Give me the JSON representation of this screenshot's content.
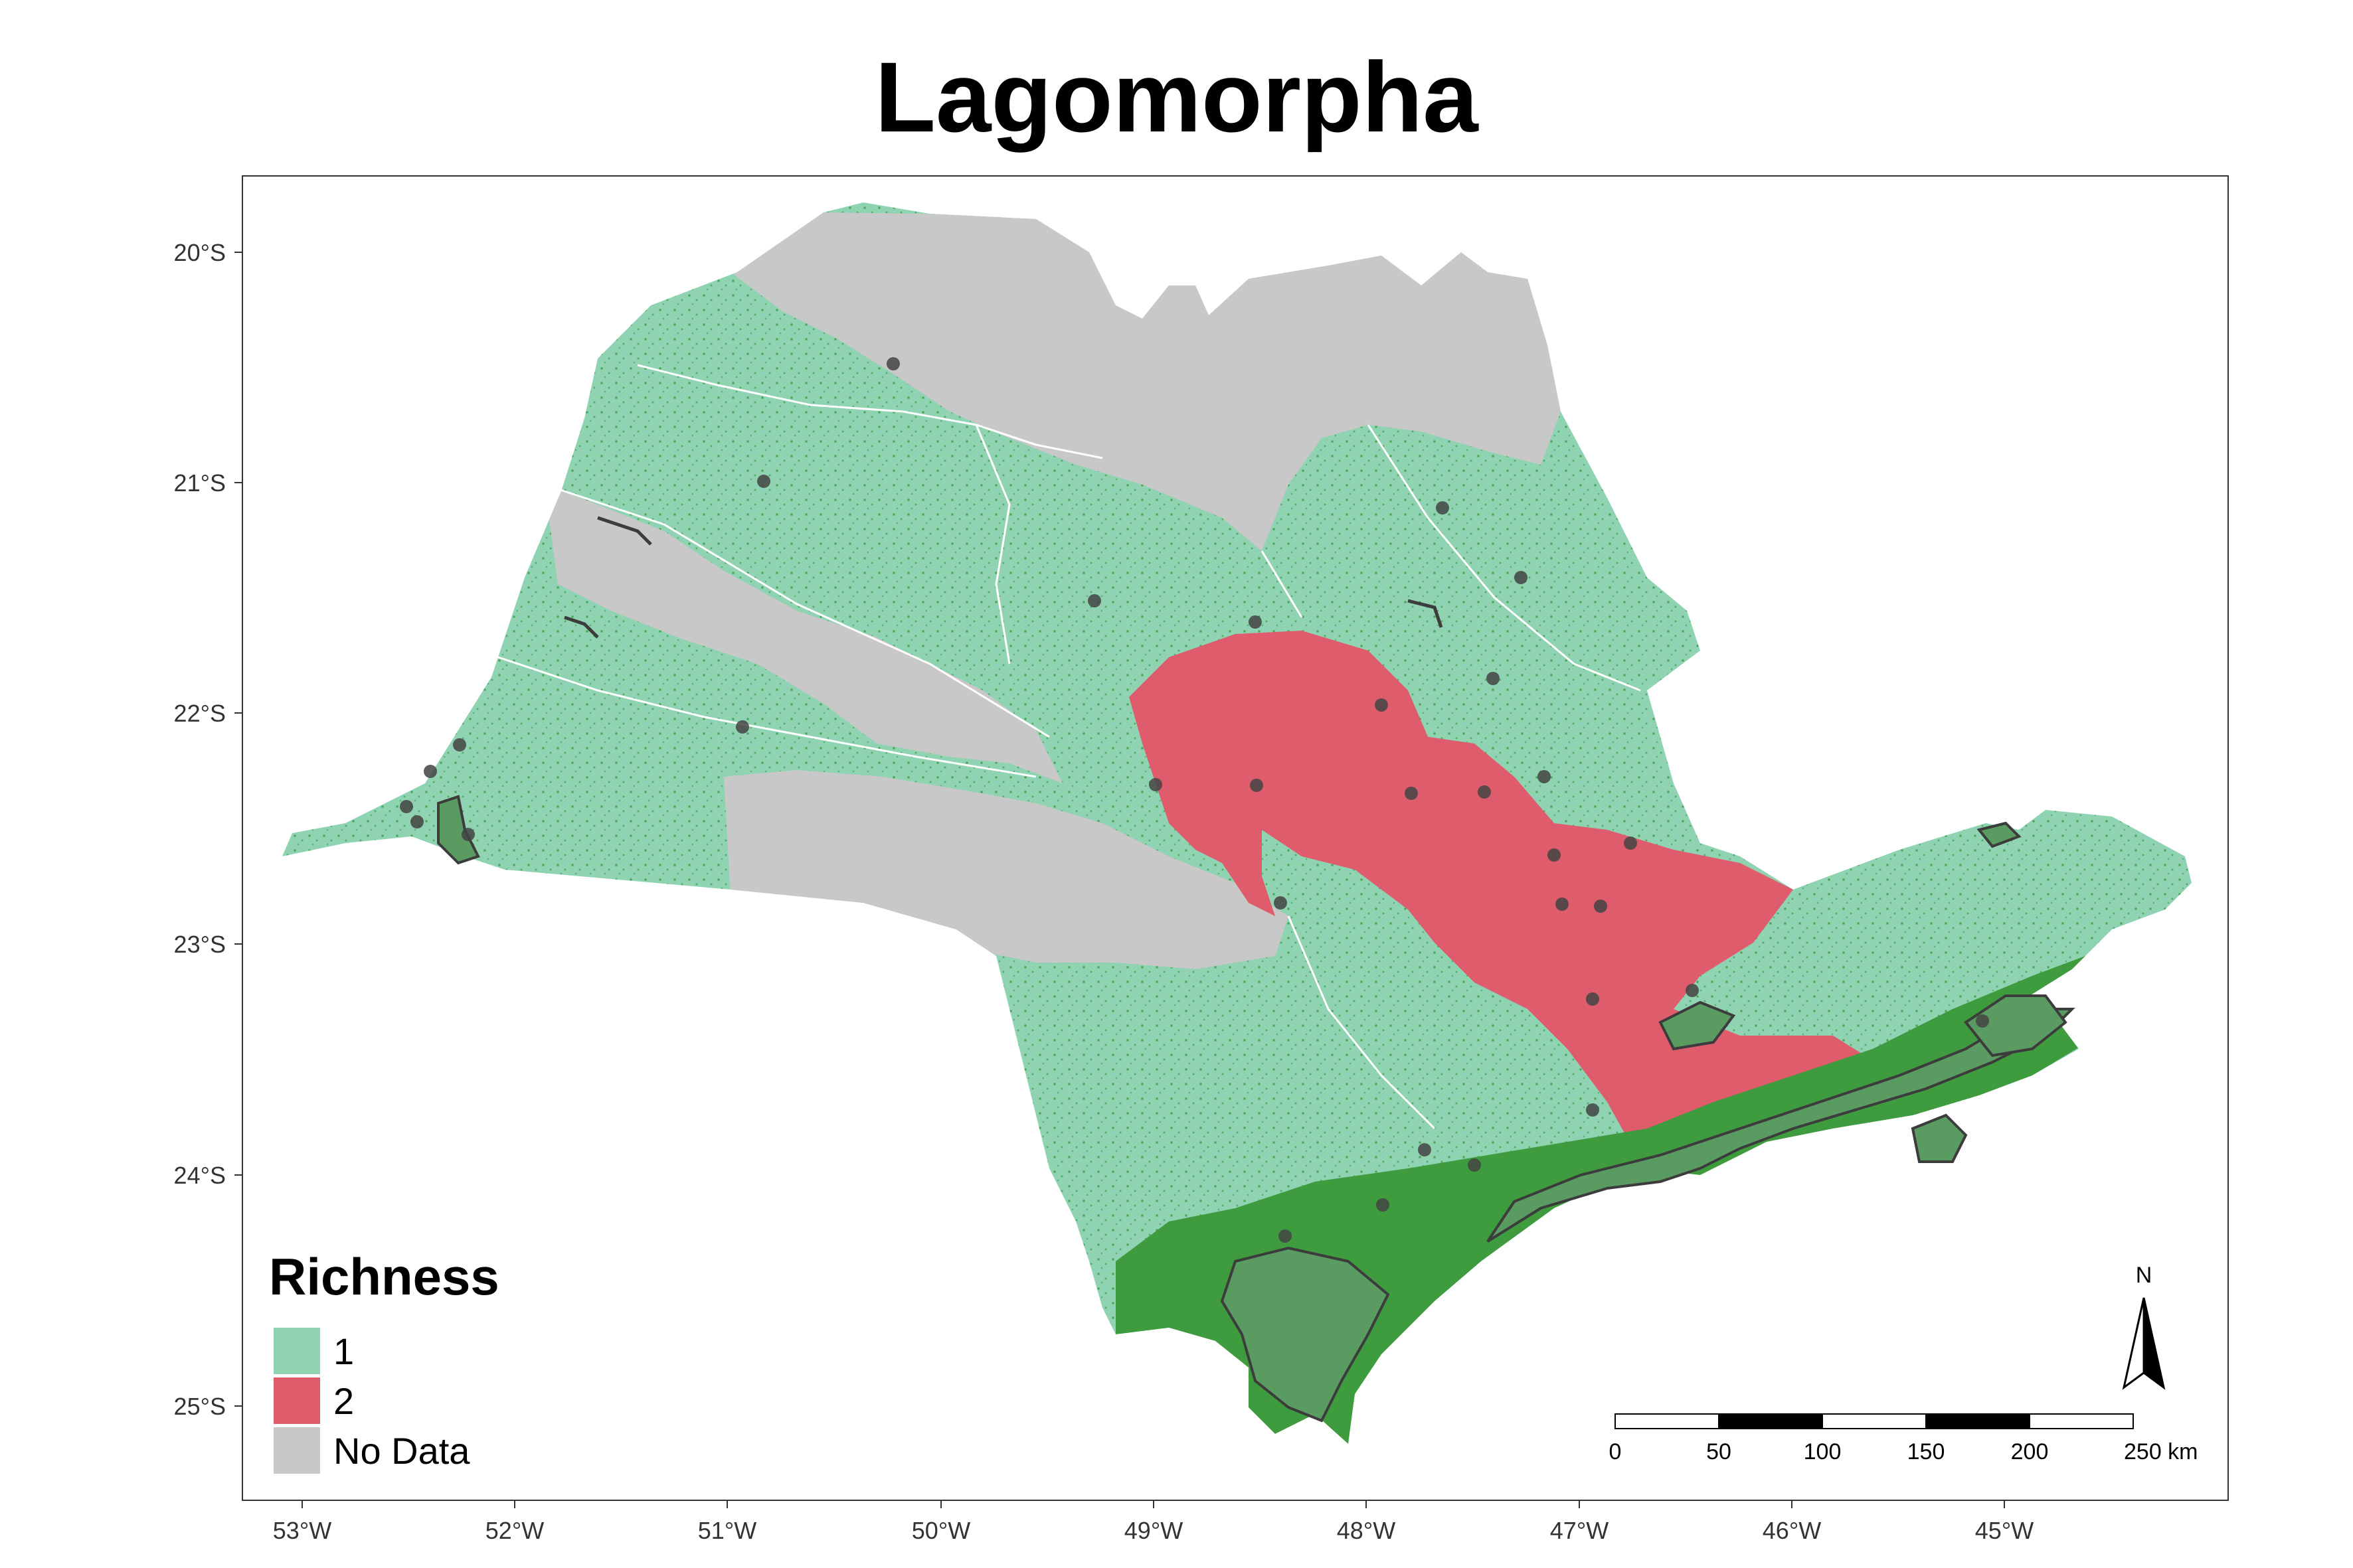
{
  "title": "Lagomorpha",
  "colors": {
    "richness_1": "#8fd3b3",
    "richness_2": "#de5c6c",
    "no_data": "#c8c8c8",
    "forest": "#3e9b3e",
    "protected": "#5a9b62",
    "protected_stroke": "#3c3c3c"
  },
  "axes": {
    "x_ticks": [
      "53°W",
      "52°W",
      "51°W",
      "50°W",
      "49°W",
      "48°W",
      "47°W",
      "46°W",
      "45°W"
    ],
    "y_ticks": [
      "20°S",
      "21°S",
      "22°S",
      "23°S",
      "24°S",
      "25°S"
    ]
  },
  "legend": {
    "title": "Richness",
    "items": [
      {
        "label": "1",
        "color": "#8fd3b3"
      },
      {
        "label": "2",
        "color": "#de5c6c"
      },
      {
        "label": "No Data",
        "color": "#c8c8c8"
      }
    ]
  },
  "north_arrow": {
    "label": "N"
  },
  "scale_bar": {
    "labels": [
      "0",
      "50",
      "100",
      "150",
      "200",
      "250 km"
    ]
  }
}
